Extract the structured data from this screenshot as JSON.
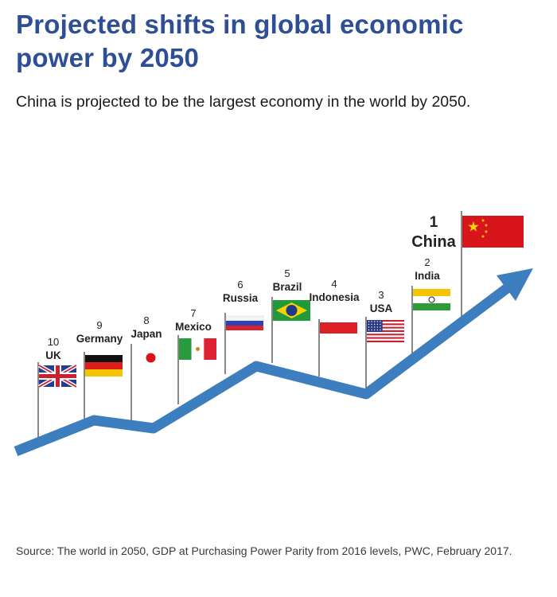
{
  "title": "Projected shifts in global economic power by 2050",
  "subtitle": "China is projected to be the largest economy in the world by 2050.",
  "source": "Source: The world in 2050, GDP at Purchasing Power Parity from 2016 levels, PWC, February 2017.",
  "chart_data": {
    "type": "line",
    "title": "Projected shifts in global economic power by 2050",
    "subtitle": "China is projected to be the largest economy in the world by 2050.",
    "ranks": [
      {
        "rank": 10,
        "country": "UK",
        "flag": "uk-flag"
      },
      {
        "rank": 9,
        "country": "Germany",
        "flag": "germany-flag"
      },
      {
        "rank": 8,
        "country": "Japan",
        "flag": "japan-flag"
      },
      {
        "rank": 7,
        "country": "Mexico",
        "flag": "mexico-flag"
      },
      {
        "rank": 6,
        "country": "Russia",
        "flag": "russia-flag"
      },
      {
        "rank": 5,
        "country": "Brazil",
        "flag": "brazil-flag"
      },
      {
        "rank": 4,
        "country": "Indonesia",
        "flag": "indonesia-flag"
      },
      {
        "rank": 3,
        "country": "USA",
        "flag": "usa-flag"
      },
      {
        "rank": 2,
        "country": "India",
        "flag": "india-flag"
      },
      {
        "rank": 1,
        "country": "China",
        "flag": "china-flag"
      }
    ],
    "trend_line_color": "#3d7ebf",
    "pole_color": "#555555"
  }
}
